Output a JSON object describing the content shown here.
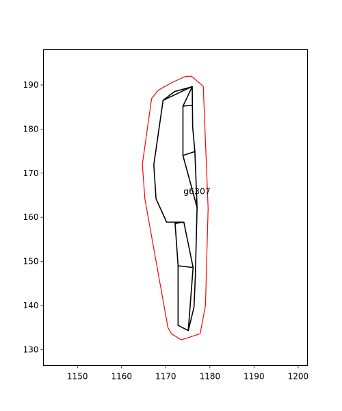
{
  "chart_data": {
    "type": "line",
    "title": "",
    "xlabel": "",
    "ylabel": "",
    "xlim": [
      1142.3,
      1202.1
    ],
    "ylim": [
      126.4,
      198.0
    ],
    "xticks": [
      1150,
      1160,
      1170,
      1180,
      1190,
      1200
    ],
    "yticks": [
      130,
      140,
      150,
      160,
      170,
      180,
      190
    ],
    "grid": false,
    "legend": "none",
    "annotations": [
      {
        "text": "g6307",
        "x": 1174.0,
        "y": 165.2
      }
    ],
    "series": [
      {
        "kind": "outline",
        "color": "#ff0000",
        "points": [
          [
            1175.8,
            192.0
          ],
          [
            1178.5,
            189.7
          ],
          [
            1179.6,
            162.0
          ],
          [
            1179.0,
            140.0
          ],
          [
            1177.8,
            133.6
          ],
          [
            1173.5,
            132.2
          ],
          [
            1171.3,
            133.6
          ],
          [
            1170.5,
            135.0
          ],
          [
            1165.3,
            164.0
          ],
          [
            1164.7,
            172.0
          ],
          [
            1166.8,
            186.9
          ],
          [
            1168.3,
            188.8
          ],
          [
            1171.5,
            190.6
          ],
          [
            1174.4,
            191.9
          ],
          [
            1175.8,
            192.0
          ]
        ]
      },
      {
        "kind": "segments",
        "color": "#000000",
        "lines": [
          [
            [
              1175.9,
              189.6
            ],
            [
              1169.4,
              186.5
            ],
            [
              1167.3,
              171.9
            ],
            [
              1167.8,
              164.2
            ],
            [
              1170.2,
              158.9
            ],
            [
              1172.1,
              158.9
            ],
            [
              1174.1,
              158.9
            ],
            [
              1176.2,
              148.6
            ],
            [
              1172.8,
              149.0
            ],
            [
              1172.8,
              135.5
            ],
            [
              1175.1,
              134.3
            ],
            [
              1176.4,
              139.6
            ],
            [
              1176.7,
              146.4
            ],
            [
              1177.1,
              162.2
            ],
            [
              1176.6,
              174.9
            ],
            [
              1176.1,
              180.5
            ],
            [
              1176.0,
              189.6
            ]
          ],
          [
            [
              1176.0,
              189.6
            ],
            [
              1172.0,
              188.5
            ],
            [
              1169.4,
              186.5
            ]
          ],
          [
            [
              1176.0,
              189.6
            ],
            [
              1173.9,
              185.2
            ],
            [
              1173.9,
              174.0
            ],
            [
              1177.1,
              162.2
            ]
          ],
          [
            [
              1173.9,
              185.2
            ],
            [
              1176.0,
              185.4
            ]
          ],
          [
            [
              1173.9,
              174.0
            ],
            [
              1176.6,
              174.9
            ]
          ],
          [
            [
              1172.1,
              158.9
            ],
            [
              1172.8,
              149.0
            ]
          ],
          [
            [
              1172.2,
              158.6
            ],
            [
              1174.1,
              158.9
            ]
          ],
          [
            [
              1176.2,
              148.6
            ],
            [
              1175.1,
              134.3
            ]
          ]
        ]
      }
    ]
  }
}
